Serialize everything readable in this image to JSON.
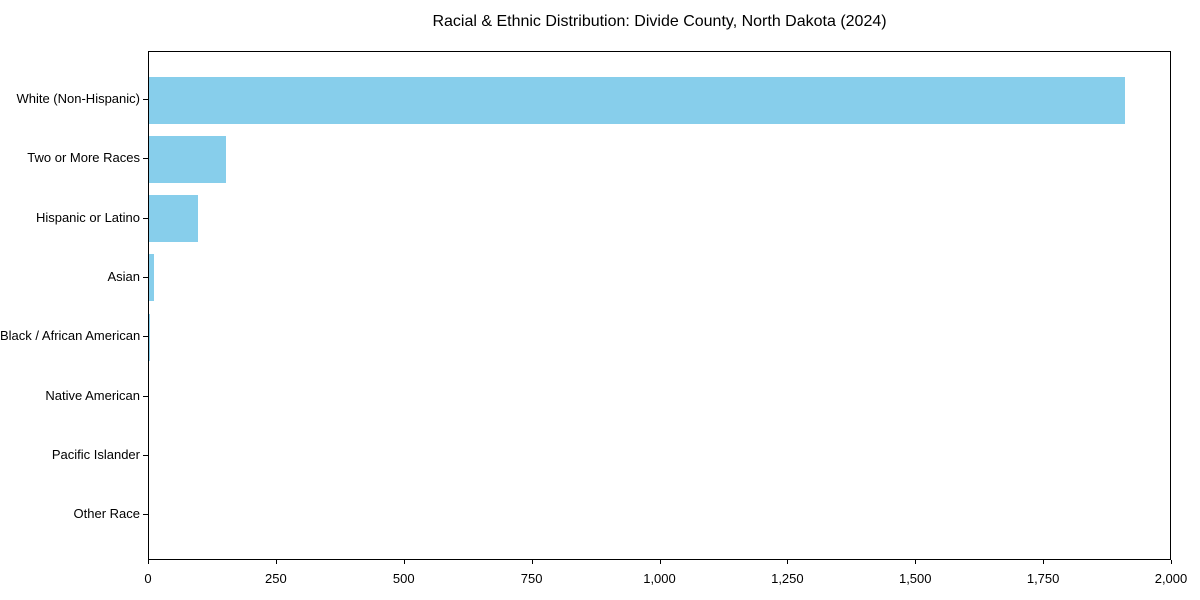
{
  "chart_data": {
    "type": "bar",
    "orientation": "horizontal",
    "title": "Racial & Ethnic Distribution: Divide County, North Dakota (2024)",
    "xlabel": "",
    "ylabel": "",
    "categories": [
      "White (Non-Hispanic)",
      "Two or More Races",
      "Hispanic or Latino",
      "Asian",
      "Black / African American",
      "Native American",
      "Pacific Islander",
      "Other Race"
    ],
    "values": [
      1909,
      150,
      96,
      10,
      2,
      0,
      0,
      0
    ],
    "xlim": [
      0,
      2000
    ],
    "xticks": [
      0,
      250,
      500,
      750,
      1000,
      1250,
      1500,
      1750,
      2000
    ],
    "xtick_labels": [
      "0",
      "250",
      "500",
      "750",
      "1,000",
      "1,250",
      "1,500",
      "1,750",
      "2,000"
    ],
    "bar_color": "#87CEEB",
    "background_color": "#ffffff",
    "spine_color": "#000000",
    "grid": false,
    "legend": null
  }
}
